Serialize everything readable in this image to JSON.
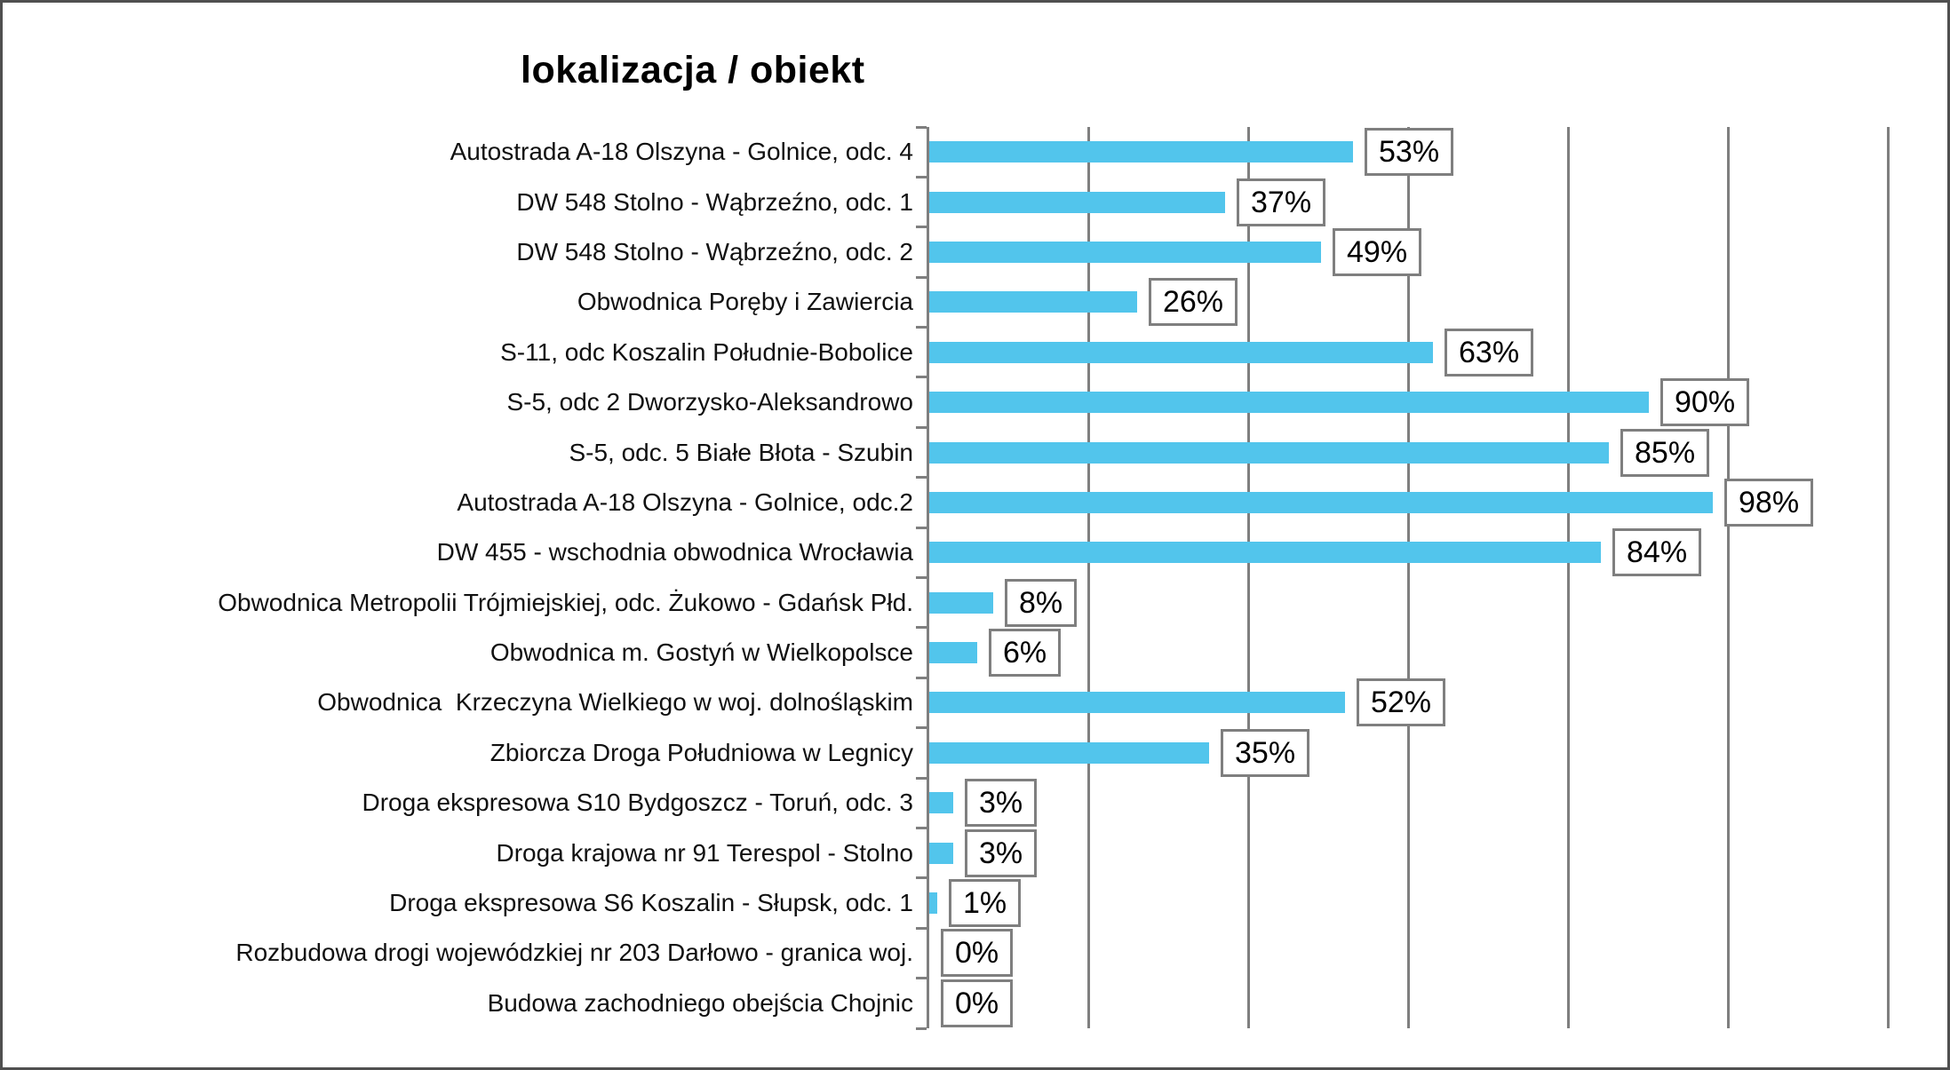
{
  "title": "lokalizacja / obiekt",
  "chart_data": {
    "type": "bar",
    "orientation": "horizontal",
    "title": "lokalizacja / obiekt",
    "categories": [
      "Autostrada A-18 Olszyna - Golnice, odc. 4",
      "DW 548 Stolno - Wąbrzeźno, odc. 1",
      "DW 548 Stolno - Wąbrzeźno, odc. 2",
      "Obwodnica Poręby i Zawiercia",
      "S-11, odc Koszalin Południe-Bobolice",
      "S-5, odc 2 Dworzysko-Aleksandrowo",
      "S-5, odc. 5 Białe Błota - Szubin",
      "Autostrada A-18 Olszyna - Golnice, odc.2",
      "DW 455 - wschodnia obwodnica Wrocławia",
      "Obwodnica Metropolii Trójmiejskiej, odc. Żukowo - Gdańsk Płd.",
      "Obwodnica m. Gostyń w Wielkopolsce",
      "Obwodnica  Krzeczyna Wielkiego w woj. dolnośląskim",
      "Zbiorcza Droga Południowa w Legnicy",
      "Droga ekspresowa S10 Bydgoszcz - Toruń, odc. 3",
      "Droga krajowa nr 91 Terespol - Stolno",
      "Droga ekspresowa S6 Koszalin - Słupsk, odc. 1",
      "Rozbudowa drogi wojewódzkiej nr 203 Darłowo - granica woj.",
      "Budowa zachodniego obejścia Chojnic"
    ],
    "values": [
      53,
      37,
      49,
      26,
      63,
      90,
      85,
      98,
      84,
      8,
      6,
      52,
      35,
      3,
      3,
      1,
      0,
      0
    ],
    "unit": "%",
    "xlim": [
      0,
      120
    ],
    "gridlines_pct": [
      20,
      40,
      60,
      80,
      100,
      120
    ],
    "grid": "vertical",
    "legend": "none",
    "x_tick_labels": "none",
    "bar_color": "#52c5ec",
    "grid_color": "#7f7f7f",
    "axis_color": "#7f7f7f",
    "value_box_border_color": "#7f7f7f",
    "value_box_bg": "#ffffff",
    "text_color": "#111111",
    "frame_border_color": "#4f4f4f"
  }
}
